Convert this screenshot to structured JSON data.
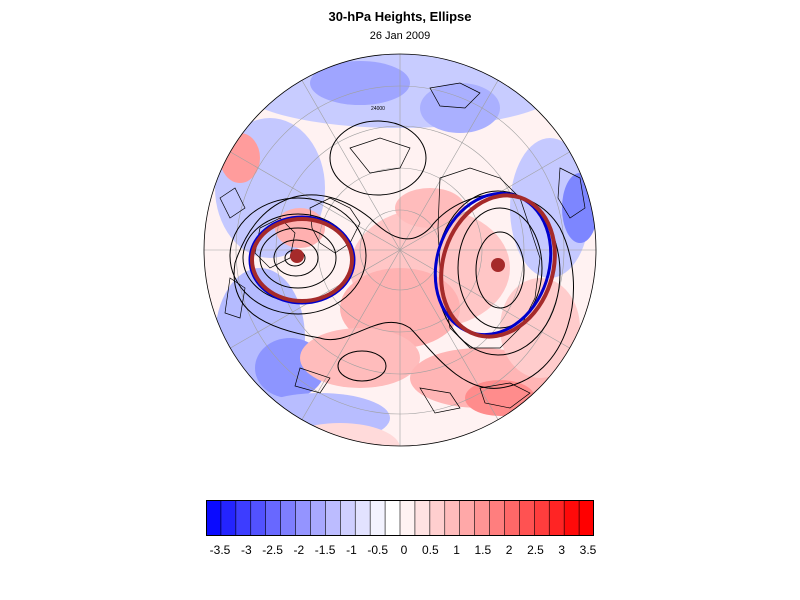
{
  "title": "30-hPa Heights, Ellipse",
  "subtitle": "26 Jan 2009",
  "map": {
    "projection": "north-polar-stereographic",
    "contour_label": "24000",
    "anomaly_field": "shaded blue-red anomalies",
    "colors": {
      "ellipse_fit": "#a52a2a",
      "ellipse_alt": "#0000cc",
      "center_marker": "#a52a2a",
      "contour": "#000000",
      "coast": "#000000",
      "grid": "#9a9a9a"
    }
  },
  "colorbar": {
    "labels": [
      "-3.5",
      "-3",
      "-2.5",
      "-2",
      "-1.5",
      "-1",
      "-0.5",
      "0",
      "0.5",
      "1",
      "1.5",
      "2",
      "2.5",
      "3",
      "3.5"
    ],
    "colors": [
      "#0a0aff",
      "#2424ff",
      "#3d3dff",
      "#5252ff",
      "#6868ff",
      "#7e7eff",
      "#9494ff",
      "#a8a8ff",
      "#bcbcff",
      "#cfcfff",
      "#e2e2ff",
      "#f3f3ff",
      "#ffffff",
      "#fff3f3",
      "#ffe2e2",
      "#ffcfcf",
      "#ffbcbc",
      "#ffa8a8",
      "#ff9494",
      "#ff7e7e",
      "#ff6868",
      "#ff5252",
      "#ff3d3d",
      "#ff2424",
      "#ff0a0a",
      "#ff0000"
    ]
  }
}
